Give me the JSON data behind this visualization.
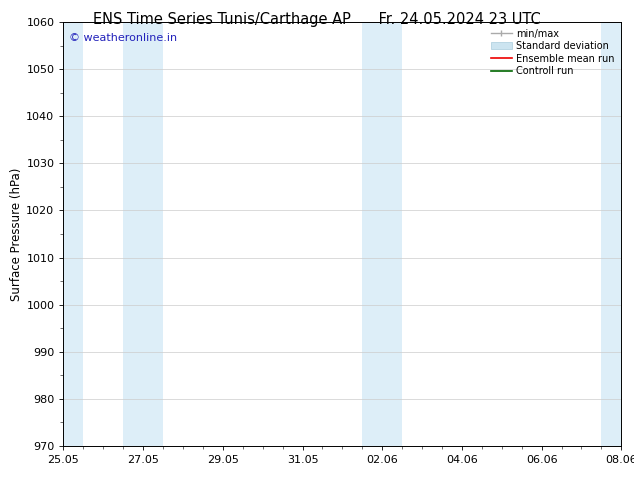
{
  "title_left": "ENS Time Series Tunis/Carthage AP",
  "title_right": "Fr. 24.05.2024 23 UTC",
  "ylabel": "Surface Pressure (hPa)",
  "ylim": [
    970,
    1060
  ],
  "yticks": [
    970,
    980,
    990,
    1000,
    1010,
    1020,
    1030,
    1040,
    1050,
    1060
  ],
  "xtick_labels": [
    "25.05",
    "27.05",
    "29.05",
    "31.05",
    "02.06",
    "04.06",
    "06.06",
    "08.06"
  ],
  "xtick_positions": [
    0,
    2,
    4,
    6,
    8,
    10,
    12,
    14
  ],
  "x_total": 14,
  "shaded_bands": [
    {
      "x_start": 0.0,
      "x_end": 0.5
    },
    {
      "x_start": 1.5,
      "x_end": 2.5
    },
    {
      "x_start": 7.5,
      "x_end": 8.5
    },
    {
      "x_start": 13.5,
      "x_end": 14.0
    }
  ],
  "shade_color": "#ddeef8",
  "background_color": "#ffffff",
  "watermark_text": "© weatheronline.in",
  "watermark_color": "#2222bb",
  "title_fontsize": 10.5,
  "axis_fontsize": 8.5,
  "tick_fontsize": 8,
  "grid_color": "#cccccc",
  "grid_lw": 0.5
}
